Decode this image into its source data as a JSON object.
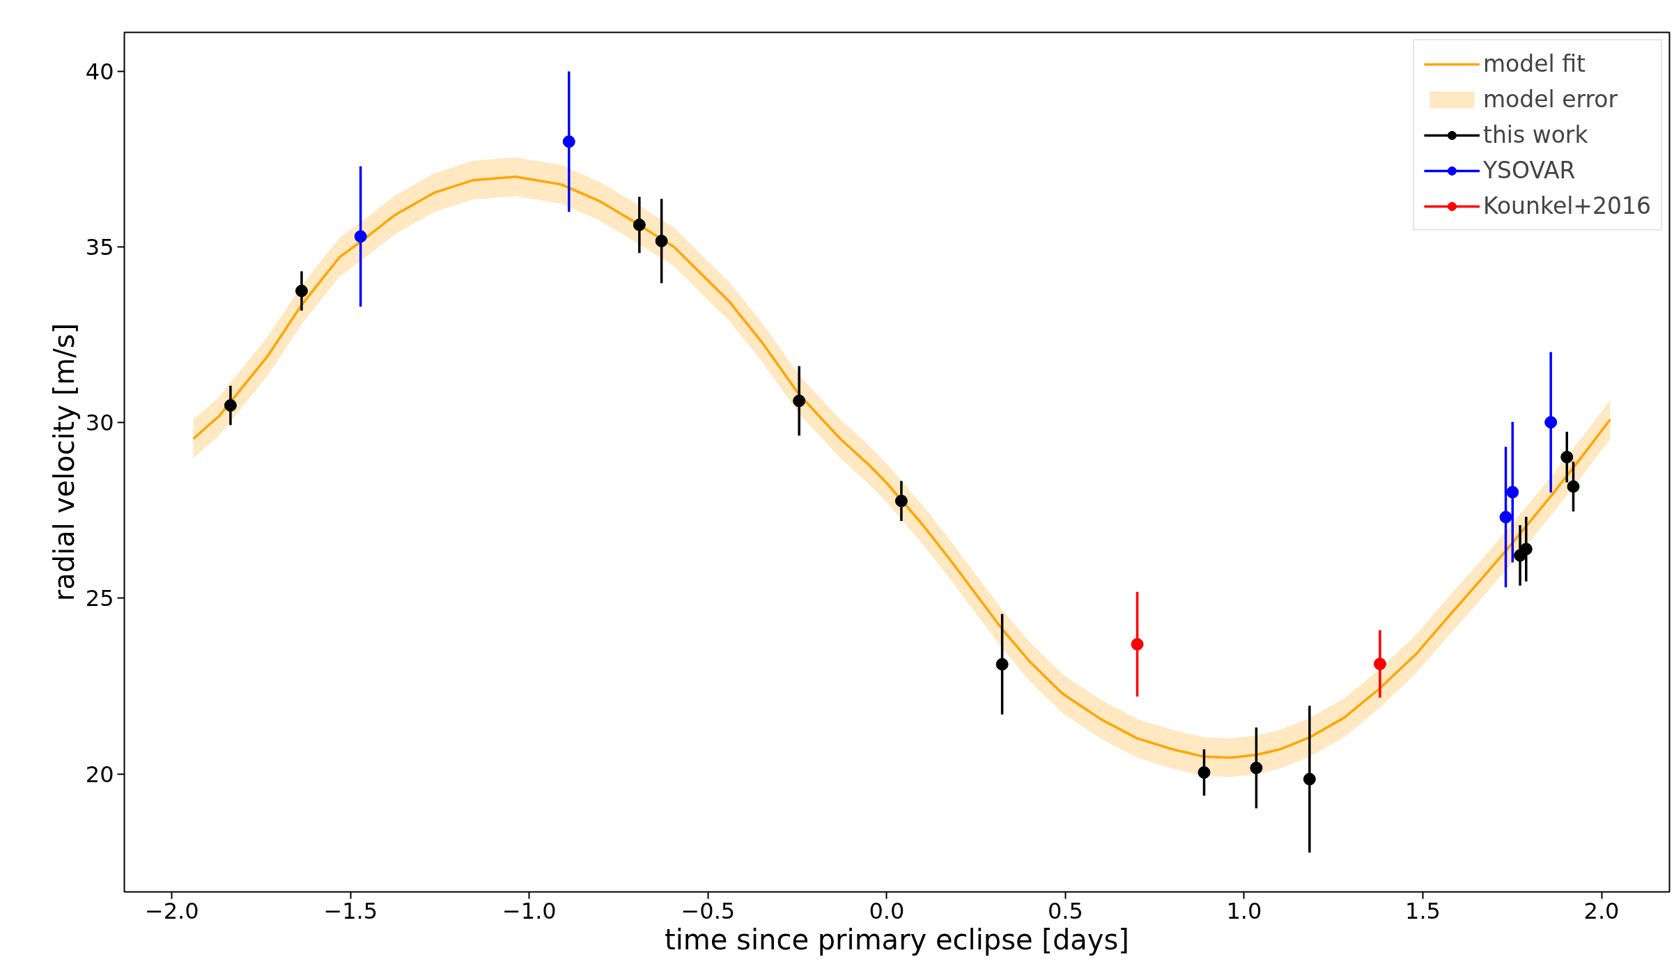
{
  "chart_data": {
    "type": "scatter",
    "xlabel": "time since primary eclipse [days]",
    "ylabel": "radial velocity [m/s]",
    "xlim": [
      -2.133,
      2.19
    ],
    "ylim": [
      16.64,
      41.11
    ],
    "xticks": [
      {
        "value": -2.0,
        "label": "−2.0"
      },
      {
        "value": -1.5,
        "label": "−1.5"
      },
      {
        "value": -1.0,
        "label": "−1.0"
      },
      {
        "value": -0.5,
        "label": "−0.5"
      },
      {
        "value": 0.0,
        "label": "0.0"
      },
      {
        "value": 0.5,
        "label": "0.5"
      },
      {
        "value": 1.0,
        "label": "1.0"
      },
      {
        "value": 1.5,
        "label": "1.5"
      },
      {
        "value": 2.0,
        "label": "2.0"
      }
    ],
    "yticks": [
      20,
      25,
      30,
      35,
      40
    ],
    "grid": false,
    "legend": "top right",
    "marker": "circle",
    "series": [
      {
        "name": "model fit",
        "type": "line",
        "marker": "none",
        "color": "#ffa500",
        "x": [
          -1.94,
          -1.9,
          -1.87,
          -1.733,
          -1.637,
          -1.531,
          -1.472,
          -1.376,
          -1.267,
          -1.159,
          -1.038,
          -0.91,
          -0.802,
          -0.72,
          -0.595,
          -0.44,
          -0.35,
          -0.245,
          -0.13,
          -0.05,
          0.0,
          0.1,
          0.181,
          0.323,
          0.4,
          0.491,
          0.6,
          0.701,
          0.8,
          0.888,
          0.961,
          1.034,
          1.1,
          1.183,
          1.28,
          1.38,
          1.48,
          1.582,
          1.66,
          1.732,
          1.861,
          1.95,
          2.024
        ],
        "values": [
          29.54,
          29.9,
          30.16,
          31.88,
          33.35,
          34.71,
          35.15,
          35.91,
          36.54,
          36.9,
          37.0,
          36.78,
          36.3,
          35.8,
          35.0,
          33.44,
          32.3,
          30.8,
          29.54,
          28.8,
          28.28,
          27.1,
          26.05,
          24.12,
          23.2,
          22.29,
          21.55,
          21.01,
          20.7,
          20.49,
          20.46,
          20.54,
          20.7,
          21.04,
          21.6,
          22.44,
          23.4,
          24.6,
          25.5,
          26.35,
          27.94,
          29.1,
          30.09
        ],
        "lower": [
          28.99,
          29.35,
          29.61,
          31.33,
          32.8,
          34.16,
          34.6,
          35.36,
          35.99,
          36.35,
          36.45,
          36.23,
          35.75,
          35.25,
          34.45,
          32.89,
          31.75,
          30.25,
          28.99,
          28.25,
          27.73,
          26.55,
          25.5,
          23.57,
          22.65,
          21.74,
          21.0,
          20.46,
          20.15,
          19.94,
          19.91,
          19.99,
          20.15,
          20.49,
          21.05,
          21.89,
          22.85,
          24.05,
          24.95,
          25.8,
          27.39,
          28.55,
          29.54
        ],
        "upper": [
          30.09,
          30.45,
          30.71,
          32.43,
          33.9,
          35.26,
          35.7,
          36.46,
          37.09,
          37.45,
          37.55,
          37.33,
          36.85,
          36.35,
          35.55,
          33.99,
          32.85,
          31.35,
          30.09,
          29.35,
          28.83,
          27.65,
          26.6,
          24.67,
          23.75,
          22.84,
          22.1,
          21.56,
          21.25,
          21.04,
          21.01,
          21.09,
          21.25,
          21.59,
          22.15,
          22.99,
          23.95,
          25.15,
          26.05,
          26.9,
          28.49,
          29.65,
          30.64
        ]
      },
      {
        "name": "model error",
        "type": "area",
        "color": "#ffe8c2"
      },
      {
        "name": "this work",
        "color": "#000000",
        "x": [
          -1.836,
          -1.637,
          -0.692,
          -0.63,
          -0.245,
          0.041,
          0.323,
          0.888,
          1.034,
          1.183,
          1.772,
          1.789,
          1.903,
          1.921
        ],
        "values": [
          30.49,
          33.75,
          35.63,
          35.17,
          30.62,
          27.77,
          23.12,
          20.04,
          20.17,
          19.85,
          26.22,
          26.4,
          29.02,
          28.18
        ],
        "errors": [
          0.56,
          0.56,
          0.8,
          1.2,
          0.99,
          0.57,
          1.43,
          0.66,
          1.15,
          2.09,
          0.86,
          0.92,
          0.72,
          0.71
        ]
      },
      {
        "name": "YSOVAR",
        "color": "#0000ff",
        "x": [
          -1.472,
          -0.889,
          1.732,
          1.751,
          1.858
        ],
        "values": [
          35.3,
          38.0,
          27.31,
          28.02,
          30.01
        ],
        "errors": [
          2.0,
          2.0,
          2.0,
          2.0,
          2.0
        ]
      },
      {
        "name": "Kounkel+2016",
        "color": "#ff0000",
        "x": [
          0.701,
          1.38
        ],
        "values": [
          23.69,
          23.13
        ],
        "errors": [
          1.49,
          0.96
        ]
      }
    ]
  }
}
